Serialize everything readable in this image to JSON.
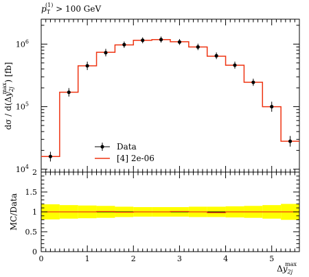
{
  "chart_data": [
    {
      "type": "step",
      "title": "p_T^(1) > 100 GeV",
      "title_parts": {
        "var": "p",
        "sub": "T",
        "sup": "(1)",
        "rest": " > 100 GeV"
      },
      "ylabel": "dσ/d(Δy_2j^max) [fb]",
      "ylabel_parts": {
        "pre": "dσ / d(Δ",
        "var": "y",
        "sub": "2j",
        "sup": "max",
        "post": ") [fb]"
      },
      "yscale": "log",
      "xlim": [
        0,
        5.6
      ],
      "ylim": [
        9000,
        2500000
      ],
      "y_ticks": [
        {
          "value": 10000,
          "base": "10",
          "exp": "4"
        },
        {
          "value": 100000,
          "base": "10",
          "exp": "5"
        },
        {
          "value": 1000000,
          "base": "10",
          "exp": "6"
        }
      ],
      "bin_edges": [
        0,
        0.4,
        0.8,
        1.2,
        1.6,
        2.0,
        2.4,
        2.8,
        3.2,
        3.6,
        4.0,
        4.4,
        4.8,
        5.2,
        5.6
      ],
      "series": [
        {
          "name": "Data",
          "style": "points",
          "color": "#000000",
          "x": [
            0.2,
            0.6,
            1.0,
            1.4,
            1.8,
            2.2,
            2.6,
            3.0,
            3.4,
            3.8,
            4.2,
            4.6,
            5.0,
            5.4
          ],
          "values": [
            16000,
            170000,
            450000,
            730000,
            980000,
            1150000,
            1180000,
            1080000,
            900000,
            650000,
            460000,
            245000,
            100000,
            28000
          ],
          "err_up": [
            3000,
            28000,
            75000,
            110000,
            120000,
            130000,
            140000,
            125000,
            115000,
            85000,
            65000,
            35000,
            20000,
            6000
          ],
          "err_down": [
            2700,
            25000,
            65000,
            95000,
            110000,
            120000,
            125000,
            110000,
            100000,
            75000,
            55000,
            30000,
            17000,
            5000
          ]
        },
        {
          "name": "[4] 2e-06",
          "style": "step",
          "color": "#ee3311",
          "values": [
            16000,
            170000,
            450000,
            740000,
            970000,
            1150000,
            1180000,
            1090000,
            900000,
            640000,
            460000,
            245000,
            100000,
            28000
          ]
        }
      ],
      "legend": {
        "placement": "lower-left",
        "entries": [
          "Data",
          "[4] 2e-06"
        ]
      }
    },
    {
      "type": "ratio",
      "ylabel": "MC/Data",
      "xlabel": "Δy_2j^max",
      "xlabel_parts": {
        "pre": "Δ",
        "var": "y",
        "sub": "2j",
        "sup": "max"
      },
      "xlim": [
        0,
        5.6
      ],
      "ylim": [
        0,
        2
      ],
      "x_ticks": [
        "0",
        "1",
        "2",
        "3",
        "4",
        "5"
      ],
      "y_ticks": [
        "0",
        "0.5",
        "1",
        "1.5",
        "2"
      ],
      "reference": 1.0,
      "band_color": "#ffff00",
      "bin_edges": [
        0,
        0.4,
        0.8,
        1.2,
        1.6,
        2.0,
        2.4,
        2.8,
        3.2,
        3.6,
        4.0,
        4.4,
        4.8,
        5.2,
        5.6
      ],
      "band_half_width": [
        0.19,
        0.17,
        0.16,
        0.15,
        0.13,
        0.12,
        0.12,
        0.12,
        0.13,
        0.13,
        0.14,
        0.15,
        0.17,
        0.2
      ],
      "ratio_values": [
        1.0,
        1.0,
        1.0,
        1.01,
        0.99,
        1.0,
        1.0,
        1.01,
        1.0,
        0.98,
        1.0,
        1.0,
        1.0,
        1.0
      ]
    }
  ]
}
